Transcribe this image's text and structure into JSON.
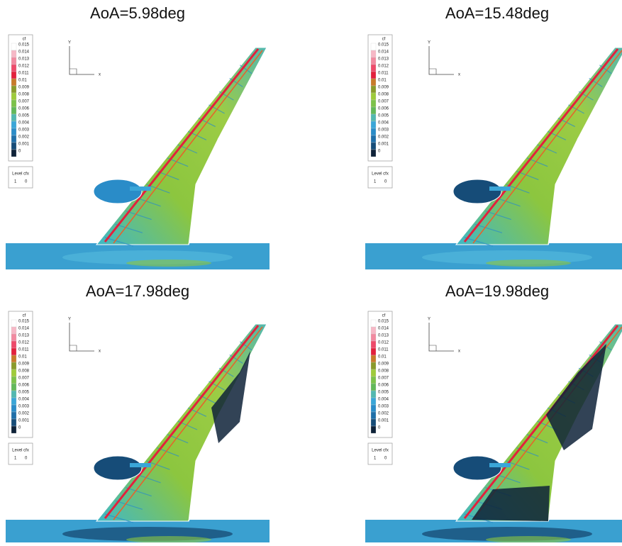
{
  "panels": [
    {
      "title": "AoA=5.98deg"
    },
    {
      "title": "AoA=15.48deg"
    },
    {
      "title": "AoA=17.98deg"
    },
    {
      "title": "AoA=19.98deg"
    }
  ],
  "legend": {
    "title": "cf",
    "levels": [
      "0.015",
      "0.014",
      "0.013",
      "0.012",
      "0.011",
      "0.01",
      "0.009",
      "0.008",
      "0.007",
      "0.006",
      "0.005",
      "0.004",
      "0.003",
      "0.002",
      "0.001",
      "0"
    ],
    "colors": [
      "#ffffff",
      "#f6b8c6",
      "#f28aa0",
      "#ee4a6a",
      "#e3203c",
      "#c87a2a",
      "#8a9a2a",
      "#9ecb3a",
      "#7cc24a",
      "#62b85a",
      "#52b8b0",
      "#3aa6d8",
      "#2a8cc8",
      "#1f6fa8",
      "#164c78",
      "#0e2238"
    ]
  },
  "level_box": {
    "header": "Level cfx",
    "values": [
      "1",
      "0"
    ]
  },
  "axes": {
    "y": "Y",
    "x": "x"
  }
}
